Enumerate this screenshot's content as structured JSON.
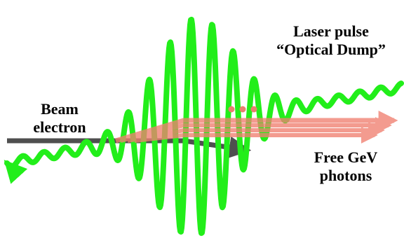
{
  "labels": {
    "laser_line1": "Laser pulse",
    "laser_line2": "“Optical Dump”",
    "beam_line1": "Beam",
    "beam_line2": "electron",
    "free_line1": "Free GeV",
    "free_line2": "photons"
  },
  "colors": {
    "laser": "#22ee1a",
    "laser_edge": "#11bb0e",
    "beam": "#3c3c3c",
    "photons": "#f08070",
    "dots": "#e8806e",
    "text": "#000000"
  }
}
